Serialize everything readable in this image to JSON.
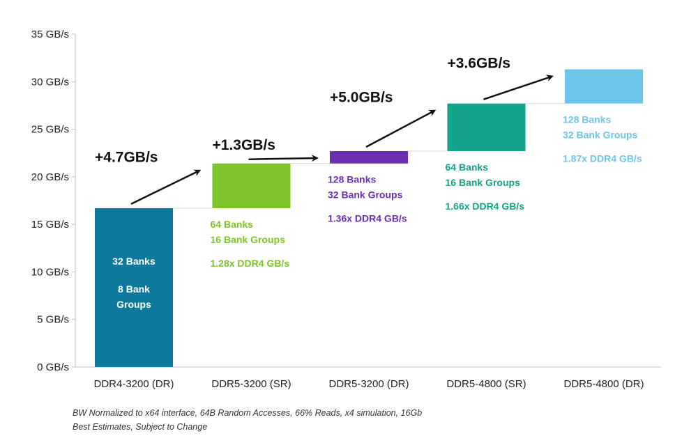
{
  "chart_data": {
    "type": "bar",
    "subtype": "waterfall",
    "categories": [
      "DDR4-3200 (DR)",
      "DDR5-3200 (SR)",
      "DDR5-3200 (DR)",
      "DDR5-4800 (SR)",
      "DDR5-4800 (DR)"
    ],
    "values": [
      16.7,
      21.4,
      22.7,
      27.7,
      31.3
    ],
    "base_value": 16.7,
    "increments": [
      {
        "from": 0,
        "to": 1,
        "label": "+4.7GB/s",
        "bar_low": 16.7,
        "bar_high": 21.4
      },
      {
        "from": 1,
        "to": 2,
        "label": "+1.3GB/s",
        "bar_low": 21.4,
        "bar_high": 22.7
      },
      {
        "from": 2,
        "to": 3,
        "label": "+5.0GB/s",
        "bar_low": 22.7,
        "bar_high": 27.7
      },
      {
        "from": 3,
        "to": 4,
        "label": "+3.6GB/s",
        "bar_low": 27.7,
        "bar_high": 31.3
      }
    ],
    "colors": [
      "#0e7a9b",
      "#7dc42a",
      "#6b2fb1",
      "#13a38a",
      "#6ec5ea"
    ],
    "ylim": [
      0,
      35
    ],
    "yticks": [
      0,
      5,
      10,
      15,
      20,
      25,
      30,
      35
    ],
    "ytick_labels": [
      "0 GB/s",
      "5 GB/s",
      "10 GB/s",
      "15 GB/s",
      "20 GB/s",
      "25 GB/s",
      "30 GB/s",
      "35 GB/s"
    ],
    "annotations": [
      {
        "category": 0,
        "lines": [
          "32 Banks",
          "8 Bank",
          "Groups"
        ],
        "color": "#ffffff"
      },
      {
        "category": 1,
        "lines": [
          "64 Banks",
          "16 Bank Groups",
          "1.28x DDR4 GB/s"
        ],
        "color": "#7dc42a"
      },
      {
        "category": 2,
        "lines": [
          "128 Banks",
          "32 Bank Groups",
          "1.36x DDR4 GB/s"
        ],
        "color": "#6b2fb1"
      },
      {
        "category": 3,
        "lines": [
          "64 Banks",
          "16 Bank Groups",
          "1.66x DDR4 GB/s"
        ],
        "color": "#13a38a"
      },
      {
        "category": 4,
        "lines": [
          "128 Banks",
          "32 Bank Groups",
          "1.87x DDR4 GB/s"
        ],
        "color": "#6ec5ea"
      }
    ],
    "grid": false,
    "legend": "none"
  },
  "footnote": {
    "line1": "BW Normalized to x64 interface, 64B Random Accesses, 66% Reads, x4 simulation, 16Gb",
    "line2": "Best Estimates, Subject to Change"
  }
}
